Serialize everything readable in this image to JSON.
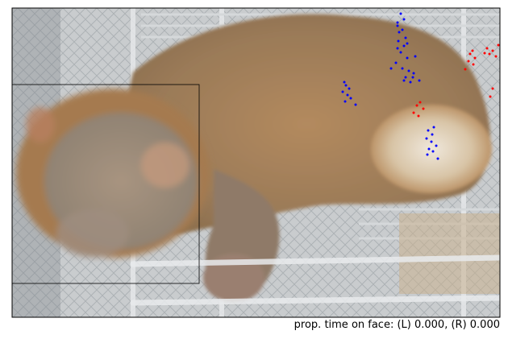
{
  "chart_data": {
    "type": "scatter",
    "background": "photograph of a juvenile rhesus macaque on a wire cage floor",
    "axes_ticks": false,
    "face_roi": {
      "x0": 0,
      "y0": 95,
      "x1": 232,
      "y1": 342
    },
    "series": [
      {
        "color": "#0000ff",
        "points": [
          [
            482,
            7
          ],
          [
            486,
            14
          ],
          [
            478,
            22
          ],
          [
            480,
            30
          ],
          [
            488,
            37
          ],
          [
            479,
            41
          ],
          [
            486,
            47
          ],
          [
            478,
            50
          ],
          [
            482,
            55
          ],
          [
            490,
            62
          ],
          [
            476,
            68
          ],
          [
            484,
            75
          ],
          [
            492,
            78
          ],
          [
            498,
            81
          ],
          [
            488,
            86
          ],
          [
            497,
            86
          ],
          [
            486,
            90
          ],
          [
            494,
            92
          ],
          [
            412,
            92
          ],
          [
            414,
            96
          ],
          [
            418,
            100
          ],
          [
            410,
            104
          ],
          [
            416,
            108
          ],
          [
            420,
            112
          ],
          [
            413,
            116
          ],
          [
            426,
            120
          ],
          [
            523,
            148
          ],
          [
            516,
            152
          ],
          [
            521,
            157
          ],
          [
            514,
            162
          ],
          [
            520,
            166
          ],
          [
            526,
            171
          ],
          [
            517,
            175
          ],
          [
            522,
            178
          ],
          [
            515,
            182
          ],
          [
            528,
            187
          ],
          [
            478,
            18
          ],
          [
            484,
            27
          ],
          [
            490,
            44
          ],
          [
            500,
            60
          ],
          [
            470,
            75
          ],
          [
            505,
            90
          ]
        ]
      },
      {
        "color": "#ff0000",
        "points": [
          [
            571,
            53
          ],
          [
            568,
            57
          ],
          [
            574,
            62
          ],
          [
            566,
            66
          ],
          [
            572,
            70
          ],
          [
            562,
            76
          ],
          [
            589,
            50
          ],
          [
            596,
            53
          ],
          [
            592,
            57
          ],
          [
            603,
            46
          ],
          [
            600,
            60
          ],
          [
            506,
            117
          ],
          [
            502,
            121
          ],
          [
            510,
            125
          ],
          [
            498,
            130
          ],
          [
            504,
            134
          ],
          [
            593,
            110
          ],
          [
            596,
            100
          ],
          [
            586,
            56
          ]
        ]
      }
    ],
    "caption": "prop. time on face: (L) 0.000, (R) 0.000"
  }
}
